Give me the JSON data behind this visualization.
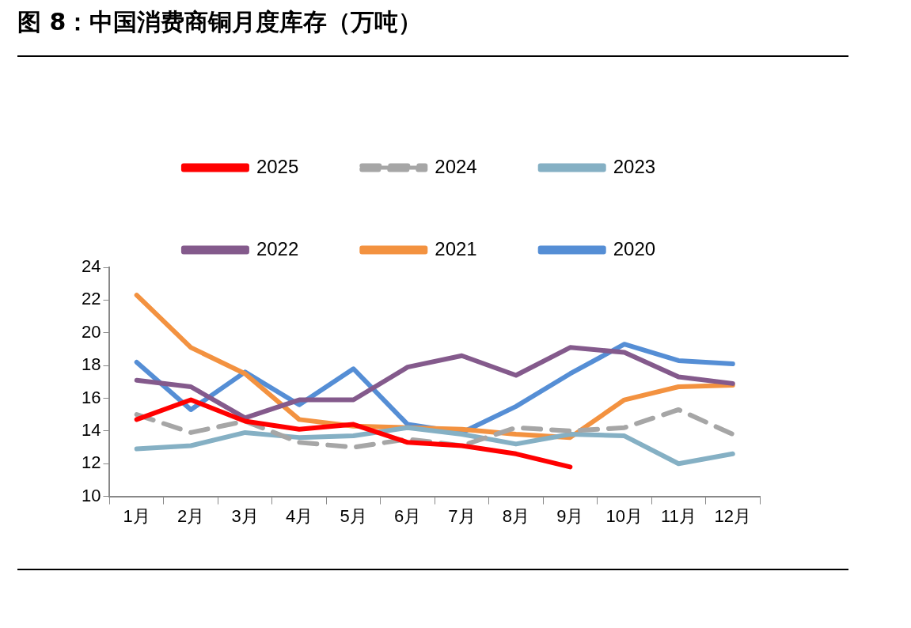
{
  "chart_data": {
    "type": "line",
    "title": "图 8：中国消费商铜月度库存（万吨）",
    "categories": [
      "1月",
      "2月",
      "3月",
      "4月",
      "5月",
      "6月",
      "7月",
      "8月",
      "9月",
      "10月",
      "11月",
      "12月"
    ],
    "series": [
      {
        "name": "2025",
        "color": "#ff0000",
        "values": [
          14.7,
          15.9,
          14.6,
          14.1,
          14.4,
          13.3,
          13.1,
          12.6,
          11.8,
          null,
          null,
          null
        ]
      },
      {
        "name": "2024",
        "color": "#a6a6a6",
        "line_style": "dashed",
        "values": [
          15.0,
          13.9,
          14.6,
          13.3,
          13.0,
          13.5,
          13.1,
          14.2,
          14.0,
          14.2,
          15.3,
          13.8
        ]
      },
      {
        "name": "2023",
        "color": "#85b0c4",
        "values": [
          12.9,
          13.1,
          13.9,
          13.6,
          13.7,
          14.2,
          13.8,
          13.2,
          13.8,
          13.7,
          12.0,
          12.6
        ]
      },
      {
        "name": "2022",
        "color": "#845a8c",
        "values": [
          17.1,
          16.7,
          14.8,
          15.9,
          15.9,
          17.9,
          18.6,
          17.4,
          19.1,
          18.8,
          17.3,
          16.9
        ]
      },
      {
        "name": "2021",
        "color": "#f39240",
        "values": [
          22.3,
          19.1,
          17.5,
          14.7,
          14.3,
          14.2,
          14.1,
          13.8,
          13.6,
          15.9,
          16.7,
          16.8
        ]
      },
      {
        "name": "2020",
        "color": "#558ed5",
        "values": [
          18.2,
          15.3,
          17.6,
          15.6,
          17.8,
          14.4,
          13.9,
          15.5,
          17.5,
          19.3,
          18.3,
          18.1
        ]
      }
    ],
    "ylim": [
      10,
      24
    ],
    "yticks": [
      10,
      12,
      14,
      16,
      18,
      20,
      22,
      24
    ],
    "grid": false,
    "legend": "top",
    "marker": "none",
    "line_style": "solid"
  }
}
